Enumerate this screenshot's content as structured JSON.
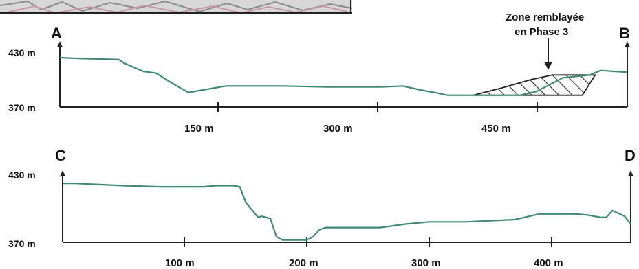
{
  "profiles": [
    {
      "start_label": "A",
      "end_label": "B",
      "y_top_label": "430 m",
      "y_bottom_label": "370 m",
      "x_ticks": [
        "150 m",
        "300 m",
        "450 m"
      ],
      "annotation": {
        "line1": "Zone remblayée",
        "line2": "en Phase 3"
      }
    },
    {
      "start_label": "C",
      "end_label": "D",
      "y_top_label": "430 m",
      "y_bottom_label": "370 m",
      "x_ticks": [
        "100 m",
        "200 m",
        "300 m",
        "400 m"
      ]
    }
  ],
  "colors": {
    "terrain": "#3f8a6e",
    "axis": "#222222",
    "hatch": "#222222"
  },
  "chart_data": [
    {
      "type": "line",
      "title": "",
      "xlabel": "",
      "ylabel": "",
      "xlim": [
        0,
        530
      ],
      "ylim": [
        370,
        430
      ],
      "x_ticks": [
        150,
        300,
        450
      ],
      "series": [
        {
          "x": [
            0,
            20,
            55,
            60,
            78,
            90,
            105,
            120,
            140,
            155,
            210,
            250,
            280,
            300,
            320,
            340,
            350,
            362,
            375,
            390,
            430,
            445,
            470,
            495,
            505,
            530
          ],
          "y": [
            424,
            423,
            422,
            418,
            409,
            407,
            396,
            386,
            390,
            393,
            393,
            392,
            392,
            392,
            393,
            388,
            386,
            383,
            383,
            383,
            383,
            387,
            402,
            405,
            410,
            408
          ]
        }
      ],
      "filled_zone": {
        "x": [
          386,
          410,
          440,
          460,
          500,
          488,
          386
        ],
        "y": [
          383,
          390,
          400,
          405,
          405,
          383,
          383
        ]
      }
    },
    {
      "type": "line",
      "title": "",
      "xlabel": "",
      "ylabel": "",
      "xlim": [
        0,
        465
      ],
      "ylim": [
        370,
        430
      ],
      "x_ticks": [
        100,
        200,
        300,
        400
      ],
      "series": [
        {
          "x": [
            0,
            10,
            30,
            50,
            80,
            100,
            115,
            125,
            135,
            140,
            145,
            150,
            160,
            163,
            170,
            175,
            180,
            190,
            195,
            200,
            205,
            210,
            215,
            225,
            260,
            280,
            300,
            330,
            350,
            370,
            390,
            420,
            430,
            440,
            445,
            450,
            460,
            465
          ],
          "y": [
            422,
            422,
            421,
            420,
            419,
            419,
            419,
            420,
            420,
            420,
            419,
            405,
            392,
            393,
            391,
            375,
            372,
            372,
            372,
            372,
            375,
            381,
            383,
            383,
            383,
            386,
            388,
            388,
            389,
            390,
            395,
            395,
            394,
            392,
            392,
            398,
            393,
            386
          ]
        }
      ]
    }
  ]
}
